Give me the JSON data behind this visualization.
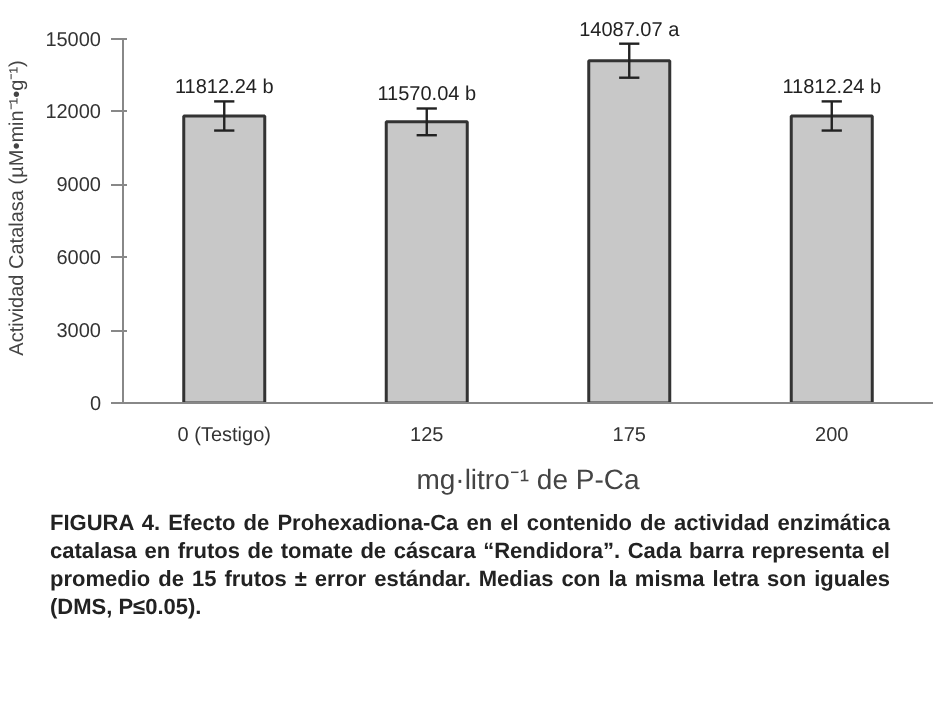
{
  "chart_data": {
    "type": "bar",
    "categories": [
      "0 (Testigo)",
      "125",
      "175",
      "200"
    ],
    "values": [
      11812.24,
      11570.04,
      14087.07,
      11812.24
    ],
    "errors": [
      600,
      550,
      700,
      600
    ],
    "value_labels": [
      "11812.24 b",
      "11570.04 b",
      "14087.07 a",
      "11812.24 b"
    ],
    "color": "#c8c8c8",
    "ylabel": "Actividad Catalasa (µM•min⁻¹•g⁻¹)",
    "xlabel": "mg·litro⁻¹ de P-Ca",
    "ylim": [
      0,
      15000
    ],
    "yticks": [
      0,
      3000,
      6000,
      9000,
      12000,
      15000
    ],
    "grid": false,
    "annotations": [
      "FIGURA 4. Efecto de Prohexadiona-Ca en el contenido de actividad enzimática catalasa en frutos de tomate de cáscara “Rendidora”. Cada barra representa el promedio de 15 frutos ± error estándar. Medias con la misma letra son iguales (DMS, P≤0.05)."
    ]
  }
}
